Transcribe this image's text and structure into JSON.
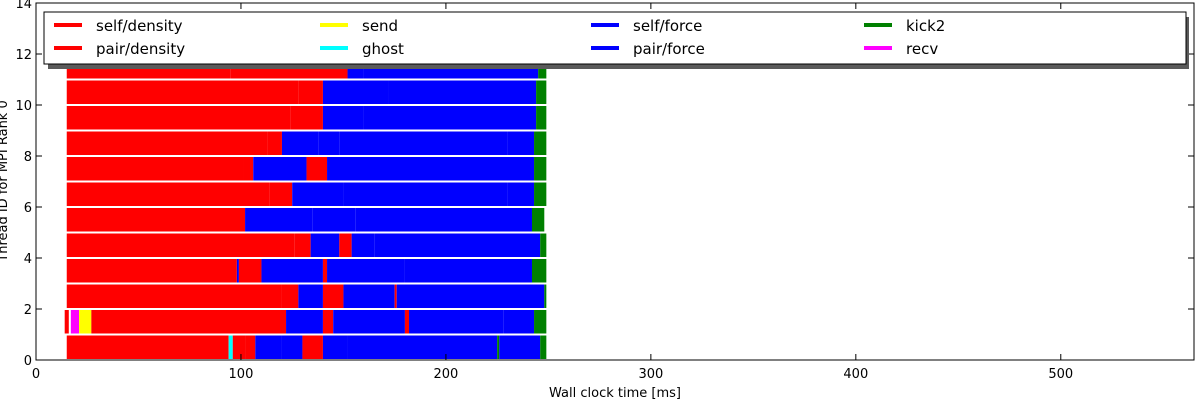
{
  "chart_data": {
    "type": "bar",
    "orientation": "horizontal-timeline",
    "xlabel": "Wall clock time [ms]",
    "ylabel": "Thread ID for MPI Rank 0",
    "xlim": [
      0,
      565
    ],
    "ylim": [
      0,
      14
    ],
    "x_ticks": [
      0,
      100,
      200,
      300,
      400,
      500
    ],
    "y_ticks": [
      0,
      2,
      4,
      6,
      8,
      10,
      12,
      14
    ],
    "grid": false,
    "legend_position": "top",
    "legend": [
      {
        "label": "self/density",
        "color": "#ff0000"
      },
      {
        "label": "pair/density",
        "color": "#ff0000"
      },
      {
        "label": "send",
        "color": "#ffff00"
      },
      {
        "label": "ghost",
        "color": "#00ffff"
      },
      {
        "label": "self/force",
        "color": "#0000ff"
      },
      {
        "label": "pair/force",
        "color": "#0000ff"
      },
      {
        "label": "kick2",
        "color": "#008000"
      },
      {
        "label": "recv",
        "color": "#ff00ff"
      }
    ],
    "threads": [
      {
        "thread": 0,
        "segments": [
          {
            "start": 15,
            "end": 94,
            "task": "pair/density"
          },
          {
            "start": 94,
            "end": 96,
            "task": "ghost"
          },
          {
            "start": 96,
            "end": 102,
            "task": "pair/density"
          },
          {
            "start": 102,
            "end": 107,
            "task": "pair/density"
          },
          {
            "start": 107,
            "end": 120,
            "task": "pair/force"
          },
          {
            "start": 120,
            "end": 130,
            "task": "self/force"
          },
          {
            "start": 130,
            "end": 140,
            "task": "pair/density"
          },
          {
            "start": 140,
            "end": 152,
            "task": "pair/force"
          },
          {
            "start": 152,
            "end": 225,
            "task": "pair/force"
          },
          {
            "start": 225,
            "end": 226,
            "task": "kick2"
          },
          {
            "start": 226,
            "end": 246,
            "task": "pair/force"
          },
          {
            "start": 246,
            "end": 249,
            "task": "kick2"
          }
        ]
      },
      {
        "thread": 1,
        "segments": [
          {
            "start": 14,
            "end": 16,
            "task": "pair/density"
          },
          {
            "start": 17,
            "end": 21,
            "task": "recv"
          },
          {
            "start": 21,
            "end": 27,
            "task": "send"
          },
          {
            "start": 27,
            "end": 122,
            "task": "pair/density"
          },
          {
            "start": 122,
            "end": 140,
            "task": "pair/force"
          },
          {
            "start": 140,
            "end": 145,
            "task": "self/density"
          },
          {
            "start": 145,
            "end": 180,
            "task": "pair/force"
          },
          {
            "start": 180,
            "end": 182,
            "task": "self/density"
          },
          {
            "start": 182,
            "end": 228,
            "task": "pair/force"
          },
          {
            "start": 228,
            "end": 243,
            "task": "self/force"
          },
          {
            "start": 243,
            "end": 249,
            "task": "kick2"
          }
        ]
      },
      {
        "thread": 2,
        "segments": [
          {
            "start": 15,
            "end": 120,
            "task": "pair/density"
          },
          {
            "start": 120,
            "end": 128,
            "task": "self/density"
          },
          {
            "start": 128,
            "end": 140,
            "task": "pair/force"
          },
          {
            "start": 140,
            "end": 150,
            "task": "pair/density"
          },
          {
            "start": 150,
            "end": 175,
            "task": "pair/force"
          },
          {
            "start": 175,
            "end": 176,
            "task": "self/density"
          },
          {
            "start": 176,
            "end": 248,
            "task": "pair/force"
          },
          {
            "start": 248,
            "end": 249,
            "task": "kick2"
          }
        ]
      },
      {
        "thread": 3,
        "segments": [
          {
            "start": 15,
            "end": 98,
            "task": "pair/density"
          },
          {
            "start": 98,
            "end": 99,
            "task": "pair/force"
          },
          {
            "start": 99,
            "end": 110,
            "task": "self/density"
          },
          {
            "start": 110,
            "end": 140,
            "task": "pair/force"
          },
          {
            "start": 140,
            "end": 142,
            "task": "self/density"
          },
          {
            "start": 142,
            "end": 180,
            "task": "pair/force"
          },
          {
            "start": 180,
            "end": 242,
            "task": "self/force"
          },
          {
            "start": 242,
            "end": 249,
            "task": "kick2"
          }
        ]
      },
      {
        "thread": 4,
        "segments": [
          {
            "start": 15,
            "end": 126,
            "task": "pair/density"
          },
          {
            "start": 126,
            "end": 134,
            "task": "self/density"
          },
          {
            "start": 134,
            "end": 148,
            "task": "pair/force"
          },
          {
            "start": 148,
            "end": 154,
            "task": "pair/density"
          },
          {
            "start": 154,
            "end": 165,
            "task": "pair/force"
          },
          {
            "start": 165,
            "end": 246,
            "task": "self/force"
          },
          {
            "start": 246,
            "end": 249,
            "task": "kick2"
          }
        ]
      },
      {
        "thread": 5,
        "segments": [
          {
            "start": 15,
            "end": 102,
            "task": "pair/density"
          },
          {
            "start": 102,
            "end": 135,
            "task": "pair/force"
          },
          {
            "start": 135,
            "end": 156,
            "task": "pair/force"
          },
          {
            "start": 156,
            "end": 232,
            "task": "self/force"
          },
          {
            "start": 232,
            "end": 242,
            "task": "pair/force"
          },
          {
            "start": 242,
            "end": 248,
            "task": "kick2"
          }
        ]
      },
      {
        "thread": 6,
        "segments": [
          {
            "start": 15,
            "end": 114,
            "task": "pair/density"
          },
          {
            "start": 114,
            "end": 125,
            "task": "self/density"
          },
          {
            "start": 125,
            "end": 150,
            "task": "pair/force"
          },
          {
            "start": 150,
            "end": 230,
            "task": "self/force"
          },
          {
            "start": 230,
            "end": 243,
            "task": "pair/force"
          },
          {
            "start": 243,
            "end": 249,
            "task": "kick2"
          }
        ]
      },
      {
        "thread": 7,
        "segments": [
          {
            "start": 15,
            "end": 101,
            "task": "pair/density"
          },
          {
            "start": 101,
            "end": 106,
            "task": "self/density"
          },
          {
            "start": 106,
            "end": 132,
            "task": "pair/force"
          },
          {
            "start": 132,
            "end": 142,
            "task": "self/density"
          },
          {
            "start": 142,
            "end": 222,
            "task": "self/force"
          },
          {
            "start": 222,
            "end": 243,
            "task": "pair/force"
          },
          {
            "start": 243,
            "end": 249,
            "task": "kick2"
          }
        ]
      },
      {
        "thread": 8,
        "segments": [
          {
            "start": 15,
            "end": 113,
            "task": "pair/density"
          },
          {
            "start": 113,
            "end": 120,
            "task": "self/density"
          },
          {
            "start": 120,
            "end": 138,
            "task": "pair/force"
          },
          {
            "start": 138,
            "end": 148,
            "task": "self/force"
          },
          {
            "start": 148,
            "end": 230,
            "task": "pair/force"
          },
          {
            "start": 230,
            "end": 243,
            "task": "self/force"
          },
          {
            "start": 243,
            "end": 249,
            "task": "kick2"
          }
        ]
      },
      {
        "thread": 9,
        "segments": [
          {
            "start": 15,
            "end": 124,
            "task": "pair/density"
          },
          {
            "start": 124,
            "end": 140,
            "task": "self/density"
          },
          {
            "start": 140,
            "end": 160,
            "task": "pair/force"
          },
          {
            "start": 160,
            "end": 232,
            "task": "self/force"
          },
          {
            "start": 232,
            "end": 244,
            "task": "pair/force"
          },
          {
            "start": 244,
            "end": 249,
            "task": "kick2"
          }
        ]
      },
      {
        "thread": 10,
        "segments": [
          {
            "start": 15,
            "end": 128,
            "task": "pair/density"
          },
          {
            "start": 128,
            "end": 140,
            "task": "self/density"
          },
          {
            "start": 140,
            "end": 172,
            "task": "pair/force"
          },
          {
            "start": 172,
            "end": 244,
            "task": "self/force"
          },
          {
            "start": 244,
            "end": 249,
            "task": "kick2"
          }
        ]
      },
      {
        "thread": 11,
        "segments": [
          {
            "start": 15,
            "end": 95,
            "task": "pair/density"
          },
          {
            "start": 95,
            "end": 152,
            "task": "self/density"
          },
          {
            "start": 152,
            "end": 160,
            "task": "pair/force"
          },
          {
            "start": 160,
            "end": 245,
            "task": "self/force"
          },
          {
            "start": 245,
            "end": 249,
            "task": "kick2"
          }
        ]
      }
    ]
  }
}
